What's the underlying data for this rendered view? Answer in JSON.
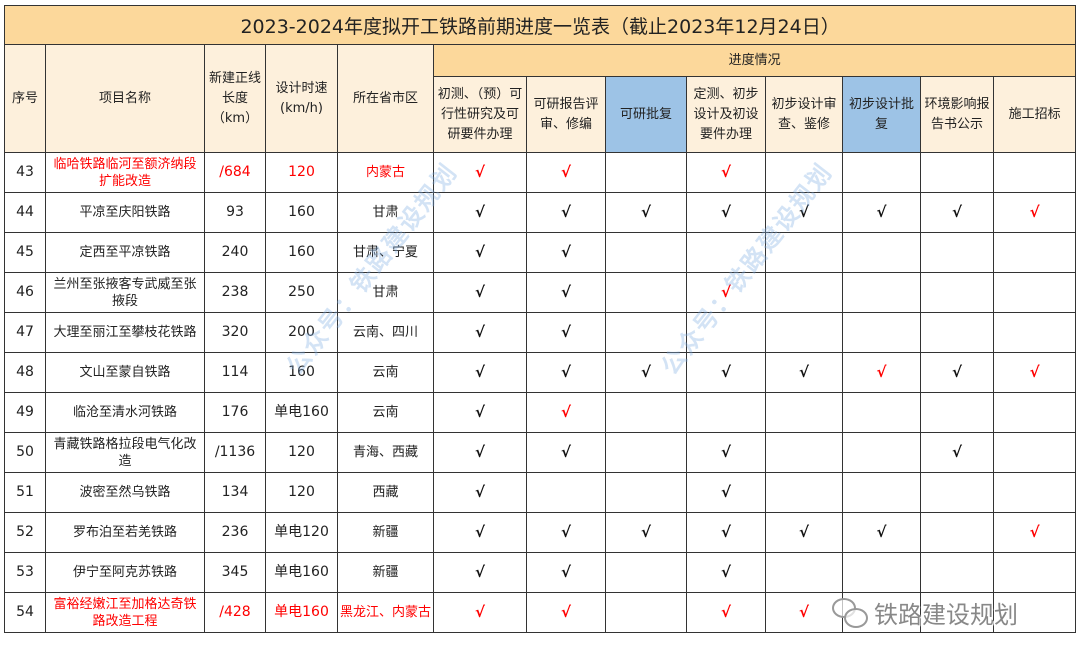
{
  "title": "2023-2024年度拟开工铁路前期进度一览表（截止2023年12月24日）",
  "headers": {
    "seq": "序号",
    "name": "项目名称",
    "length": "新建正线长度（km）",
    "speed": "设计时速(km/h)",
    "province": "所在省市区",
    "progress": "进度情况",
    "stages": [
      {
        "label": "初测、（预）可行性研究及可研要件办理",
        "highlight": false
      },
      {
        "label": "可研报告评审、修编",
        "highlight": false
      },
      {
        "label": "可研批复",
        "highlight": true
      },
      {
        "label": "定测、初步设计及初设要件办理",
        "highlight": false
      },
      {
        "label": "初步设计审查、鉴修",
        "highlight": false
      },
      {
        "label": "初步设计批复",
        "highlight": true
      },
      {
        "label": "环境影响报告书公示",
        "highlight": false
      },
      {
        "label": "施工招标",
        "highlight": false
      }
    ]
  },
  "colors": {
    "header_bg": "#fcd89b",
    "highlight": "#9dc3e6",
    "red": "#ff0000",
    "check": "#111111"
  },
  "check_symbol": "√",
  "rows": [
    {
      "seq": "43",
      "name": "临哈铁路临河至额济纳段扩能改造",
      "length": "/684",
      "speed": "120",
      "province": "内蒙古",
      "red": true,
      "marks": [
        "r",
        "r",
        "",
        "r",
        "",
        "",
        "",
        ""
      ]
    },
    {
      "seq": "44",
      "name": "平凉至庆阳铁路",
      "length": "93",
      "speed": "160",
      "province": "甘肃",
      "red": false,
      "marks": [
        "k",
        "k",
        "k",
        "k",
        "k",
        "k",
        "k",
        "r"
      ]
    },
    {
      "seq": "45",
      "name": "定西至平凉铁路",
      "length": "240",
      "speed": "160",
      "province": "甘肃、宁夏",
      "red": false,
      "marks": [
        "k",
        "k",
        "",
        "",
        "",
        "",
        "",
        ""
      ]
    },
    {
      "seq": "46",
      "name": "兰州至张掖客专武威至张掖段",
      "length": "238",
      "speed": "250",
      "province": "甘肃",
      "red": false,
      "marks": [
        "k",
        "k",
        "",
        "r",
        "",
        "",
        "",
        ""
      ]
    },
    {
      "seq": "47",
      "name": "大理至丽江至攀枝花铁路",
      "length": "320",
      "speed": "200",
      "province": "云南、四川",
      "red": false,
      "marks": [
        "k",
        "k",
        "",
        "",
        "",
        "",
        "",
        ""
      ]
    },
    {
      "seq": "48",
      "name": "文山至蒙自铁路",
      "length": "114",
      "speed": "160",
      "province": "云南",
      "red": false,
      "marks": [
        "k",
        "k",
        "k",
        "k",
        "k",
        "r",
        "k",
        "r"
      ]
    },
    {
      "seq": "49",
      "name": "临沧至清水河铁路",
      "length": "176",
      "speed": "单电160",
      "province": "云南",
      "red": false,
      "marks": [
        "k",
        "r",
        "",
        "",
        "",
        "",
        "",
        ""
      ]
    },
    {
      "seq": "50",
      "name": "青藏铁路格拉段电气化改造",
      "length": "/1136",
      "speed": "120",
      "province": "青海、西藏",
      "red": false,
      "marks": [
        "k",
        "k",
        "",
        "k",
        "",
        "",
        "k",
        ""
      ]
    },
    {
      "seq": "51",
      "name": "波密至然乌铁路",
      "length": "134",
      "speed": "120",
      "province": "西藏",
      "red": false,
      "marks": [
        "k",
        "",
        "",
        "k",
        "",
        "",
        "",
        ""
      ]
    },
    {
      "seq": "52",
      "name": "罗布泊至若羌铁路",
      "length": "236",
      "speed": "单电120",
      "province": "新疆",
      "red": false,
      "marks": [
        "k",
        "k",
        "k",
        "k",
        "k",
        "k",
        "",
        "r"
      ]
    },
    {
      "seq": "53",
      "name": "伊宁至阿克苏铁路",
      "length": "345",
      "speed": "单电160",
      "province": "新疆",
      "red": false,
      "marks": [
        "k",
        "k",
        "",
        "k",
        "",
        "",
        "",
        ""
      ]
    },
    {
      "seq": "54",
      "name": "富裕经嫩江至加格达奇铁路改造工程",
      "length": "/428",
      "speed": "单电160",
      "province": "黑龙江、内蒙古",
      "red": true,
      "marks": [
        "r",
        "r",
        "",
        "r",
        "r",
        "",
        "",
        ""
      ]
    }
  ],
  "watermark": "公众号：铁路建设规划",
  "logo_text": "铁路建设规划"
}
